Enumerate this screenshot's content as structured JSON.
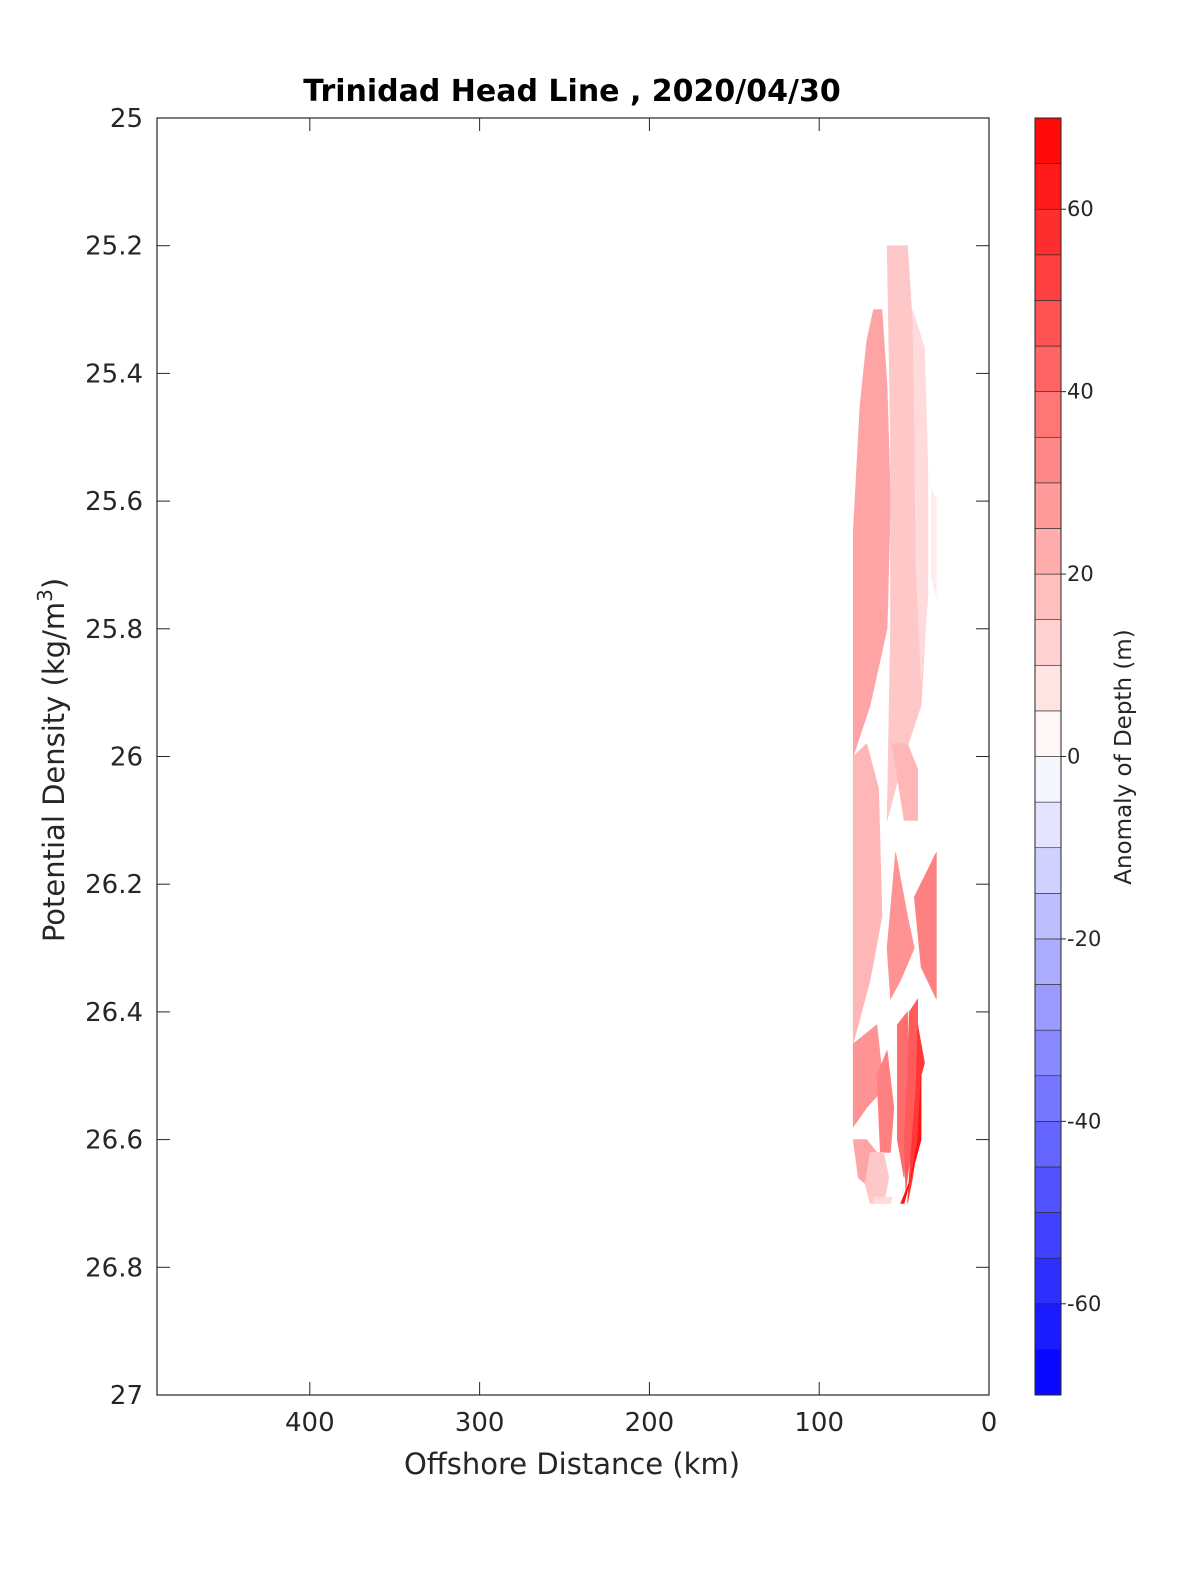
{
  "chart_data": {
    "type": "heatmap",
    "title": "Trinidad Head Line , 2020/04/30",
    "xlabel": "Offshore Distance (km)",
    "ylabel": "Potential Density (kg/m³)",
    "ylabel_base": "Potential Density (kg/m",
    "ylabel_sup": "3",
    "ylabel_tail": ")",
    "xlim": [
      490,
      0
    ],
    "ylim": [
      25,
      27
    ],
    "x_reversed": true,
    "y_reversed": true,
    "x_ticks": [
      400,
      300,
      200,
      100,
      0
    ],
    "x_tick_labels": [
      "400",
      "300",
      "200",
      "100",
      "0"
    ],
    "y_ticks": [
      25,
      25.2,
      25.4,
      25.6,
      25.8,
      26,
      26.2,
      26.4,
      26.6,
      26.8,
      27
    ],
    "y_tick_labels": [
      "25",
      "25.2",
      "25.4",
      "25.6",
      "25.8",
      "26",
      "26.2",
      "26.4",
      "26.6",
      "26.8",
      "27"
    ],
    "grid": false,
    "colorbar": {
      "label": "Anomaly of Depth (m)",
      "range": [
        -70,
        70
      ],
      "levels": [
        -70,
        -65,
        -60,
        -55,
        -50,
        -45,
        -40,
        -35,
        -30,
        -25,
        -20,
        -15,
        -10,
        -5,
        0,
        5,
        10,
        15,
        20,
        25,
        30,
        35,
        40,
        45,
        50,
        55,
        60,
        65,
        70
      ],
      "ticks": [
        60,
        40,
        20,
        0,
        -20,
        -40,
        -60
      ],
      "tick_labels": [
        "60",
        "40",
        "20",
        "0",
        "-20",
        "-40",
        "-60"
      ],
      "colormap": "blue-white-red",
      "neg_color": "#0000ff",
      "zero_color": "#ffffff",
      "pos_color": "#ff0000"
    },
    "regions": [
      {
        "value": 25,
        "points": [
          [
            80,
            25.65
          ],
          [
            76,
            25.45
          ],
          [
            72,
            25.35
          ],
          [
            68,
            25.3
          ],
          [
            63,
            25.3
          ],
          [
            60,
            25.42
          ],
          [
            58,
            25.6
          ],
          [
            60,
            25.8
          ],
          [
            70,
            25.92
          ],
          [
            80,
            26.0
          ]
        ]
      },
      {
        "value": 15,
        "points": [
          [
            60,
            25.2
          ],
          [
            48,
            25.2
          ],
          [
            42,
            25.45
          ],
          [
            37,
            25.6
          ],
          [
            37,
            25.78
          ],
          [
            40,
            25.92
          ],
          [
            50,
            26.0
          ],
          [
            60,
            26.1
          ],
          [
            58,
            25.8
          ],
          [
            58,
            25.5
          ]
        ]
      },
      {
        "value": 10,
        "points": [
          [
            45,
            25.3
          ],
          [
            38,
            25.36
          ],
          [
            36,
            25.55
          ],
          [
            36,
            25.75
          ],
          [
            40,
            25.88
          ],
          [
            43,
            25.7
          ],
          [
            44,
            25.45
          ]
        ]
      },
      {
        "value": 5,
        "points": [
          [
            34,
            25.58
          ],
          [
            31,
            25.6
          ],
          [
            31,
            25.75
          ],
          [
            34,
            25.72
          ]
        ]
      },
      {
        "value": 20,
        "points": [
          [
            80,
            26.0
          ],
          [
            80,
            26.45
          ],
          [
            70,
            26.35
          ],
          [
            63,
            26.25
          ],
          [
            65,
            26.05
          ],
          [
            72,
            25.98
          ]
        ]
      },
      {
        "value": 20,
        "points": [
          [
            57,
            25.98
          ],
          [
            48,
            25.98
          ],
          [
            42,
            26.02
          ],
          [
            42,
            26.1
          ],
          [
            50,
            26.1
          ]
        ]
      },
      {
        "value": 30,
        "points": [
          [
            55,
            26.15
          ],
          [
            48,
            26.25
          ],
          [
            44,
            26.3
          ],
          [
            52,
            26.35
          ],
          [
            58,
            26.38
          ],
          [
            60,
            26.3
          ]
        ]
      },
      {
        "value": 35,
        "points": [
          [
            44,
            26.22
          ],
          [
            31,
            26.15
          ],
          [
            31,
            26.38
          ],
          [
            40,
            26.33
          ]
        ]
      },
      {
        "value": 30,
        "points": [
          [
            80,
            26.45
          ],
          [
            66,
            26.42
          ],
          [
            62,
            26.52
          ],
          [
            72,
            26.55
          ],
          [
            80,
            26.58
          ]
        ]
      },
      {
        "value": 35,
        "points": [
          [
            66,
            26.5
          ],
          [
            60,
            26.46
          ],
          [
            56,
            26.55
          ],
          [
            58,
            26.62
          ],
          [
            64,
            26.62
          ]
        ]
      },
      {
        "value": 25,
        "points": [
          [
            80,
            26.6
          ],
          [
            72,
            26.6
          ],
          [
            66,
            26.62
          ],
          [
            62,
            26.65
          ],
          [
            68,
            26.68
          ],
          [
            77,
            26.66
          ]
        ]
      },
      {
        "value": 15,
        "points": [
          [
            70,
            26.62
          ],
          [
            62,
            26.62
          ],
          [
            59,
            26.66
          ],
          [
            62,
            26.7
          ],
          [
            70,
            26.7
          ],
          [
            73,
            26.67
          ]
        ]
      },
      {
        "value": 10,
        "points": [
          [
            68,
            26.69
          ],
          [
            57,
            26.69
          ],
          [
            58,
            26.7
          ],
          [
            68,
            26.7
          ]
        ]
      },
      {
        "value": 40,
        "points": [
          [
            54,
            26.42
          ],
          [
            48,
            26.4
          ],
          [
            47,
            26.58
          ],
          [
            50,
            26.66
          ],
          [
            54,
            26.6
          ]
        ]
      },
      {
        "value": 45,
        "points": [
          [
            47,
            26.4
          ],
          [
            42,
            26.38
          ],
          [
            42,
            26.5
          ],
          [
            45,
            26.6
          ],
          [
            49,
            26.68
          ],
          [
            50,
            26.6
          ],
          [
            48,
            26.5
          ]
        ]
      },
      {
        "value": 55,
        "points": [
          [
            42,
            26.42
          ],
          [
            38,
            26.48
          ],
          [
            40,
            26.5
          ],
          [
            42,
            26.6
          ],
          [
            45,
            26.66
          ],
          [
            48,
            26.7
          ],
          [
            46,
            26.62
          ],
          [
            43,
            26.52
          ]
        ]
      },
      {
        "value": 65,
        "points": [
          [
            40,
            26.5
          ],
          [
            40,
            26.6
          ],
          [
            44,
            26.64
          ],
          [
            50,
            26.7
          ],
          [
            52,
            26.7
          ],
          [
            46,
            26.66
          ],
          [
            42,
            26.6
          ]
        ]
      }
    ]
  }
}
